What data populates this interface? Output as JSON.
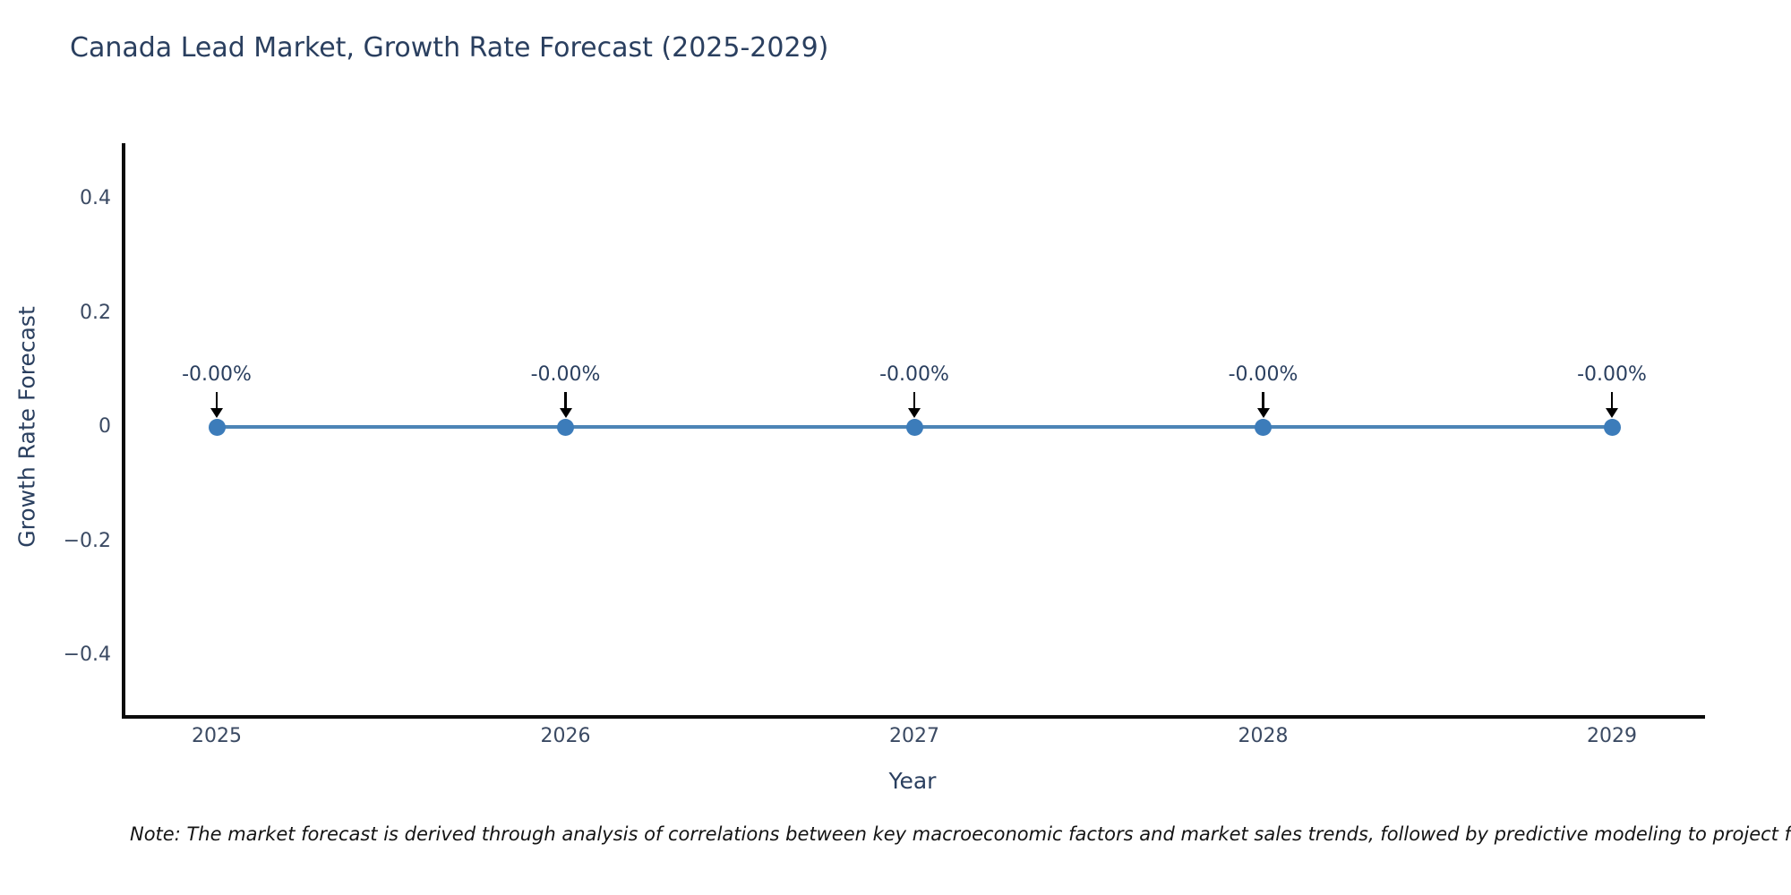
{
  "chart": {
    "title": "Canada Lead Market, Growth Rate Forecast (2025-2029)",
    "x_axis_label": "Year",
    "y_axis_label": "Growth Rate Forecast",
    "note": "Note: The market forecast is derived through analysis of correlations between key macroeconomic factors and market sales trends, followed by predictive modeling to project future sa"
  },
  "chart_data": {
    "type": "line",
    "title": "Canada Lead Market, Growth Rate Forecast (2025-2029)",
    "xlabel": "Year",
    "ylabel": "Growth Rate Forecast",
    "x": [
      "2025",
      "2026",
      "2027",
      "2028",
      "2029"
    ],
    "values": [
      0,
      0,
      0,
      0,
      0
    ],
    "point_labels": [
      "-0.00%",
      "-0.00%",
      "-0.00%",
      "-0.00%",
      "-0.00%"
    ],
    "ylim": [
      -0.5,
      0.5
    ],
    "yticks": [
      {
        "value": 0.4,
        "label": "0.4"
      },
      {
        "value": 0.2,
        "label": "0.2"
      },
      {
        "value": 0,
        "label": "0"
      },
      {
        "value": -0.2,
        "label": "−0.2"
      },
      {
        "value": -0.4,
        "label": "−0.4"
      }
    ],
    "grid": false,
    "legend": false,
    "line_color": "#4c84b6",
    "marker_color": "#3c7cba",
    "annotation_arrow_color": "#000000"
  }
}
